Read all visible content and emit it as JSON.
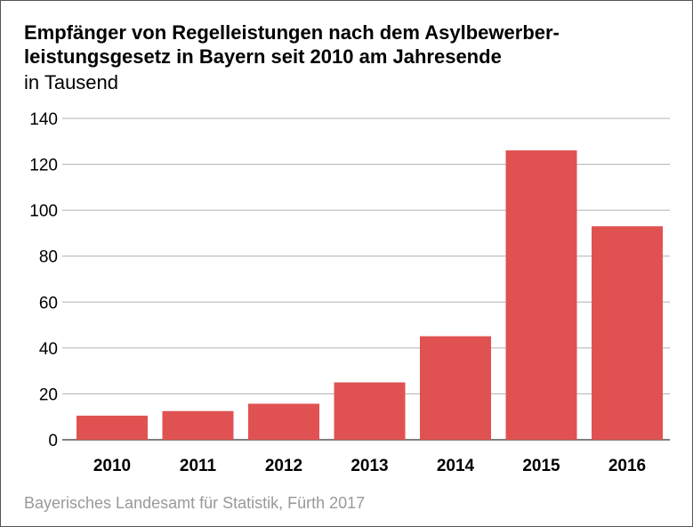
{
  "title_line1": "Empfänger von Regelleistungen nach dem Asylbewerber-",
  "title_line2": "leistungsgesetz in Bayern seit 2010 am Jahresende",
  "subtitle": "in Tausend",
  "source": "Bayerisches Landesamt für Statistik, Fürth 2017",
  "chart_data": {
    "type": "bar",
    "title": "Empfänger von Regelleistungen nach dem Asylbewerberleistungsgesetz in Bayern seit 2010 am Jahresende",
    "subtitle": "in Tausend",
    "categories": [
      "2010",
      "2011",
      "2012",
      "2013",
      "2014",
      "2015",
      "2016"
    ],
    "values": [
      10.5,
      12.5,
      15.7,
      25,
      45.1,
      126.1,
      93
    ],
    "ylim": [
      0,
      140
    ],
    "yticks": [
      0,
      20,
      40,
      60,
      80,
      100,
      120,
      140
    ],
    "ytick_labels": [
      "0",
      "20",
      "40",
      "60",
      "80",
      "100",
      "120",
      "140"
    ],
    "grid": true,
    "legend": "none",
    "bar_color": "#e05252",
    "grid_color": "#b0b0b0"
  }
}
